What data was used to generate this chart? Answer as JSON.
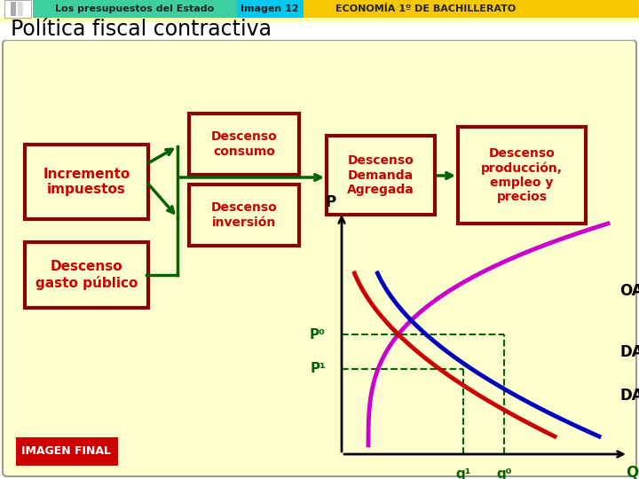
{
  "title_bar": {
    "text1": "Los presupuestos del Estado",
    "text2": "Imagen 12",
    "text3": "ECONOMÍA 1º DE BACHILLERATO",
    "color1": "#3ecfa0",
    "color2": "#00c8f0",
    "color3": "#f5c800"
  },
  "main_title": "Política fiscal contractiva",
  "bg_outer": "#fffff0",
  "bg_inner": "#ffffd0",
  "box_border": "#8b0000",
  "box_fill": "#ffffd0",
  "box_text": "#cc0000",
  "arrow_color": "#006400",
  "graph": {
    "oa_color": "#cc00cc",
    "da0_color": "#0000bb",
    "da1_color": "#cc0000",
    "dash_color": "#006400",
    "label_color": "#006400"
  },
  "imagen_final_bg": "#cc0000",
  "imagen_final_text": "IMAGEN FINAL"
}
